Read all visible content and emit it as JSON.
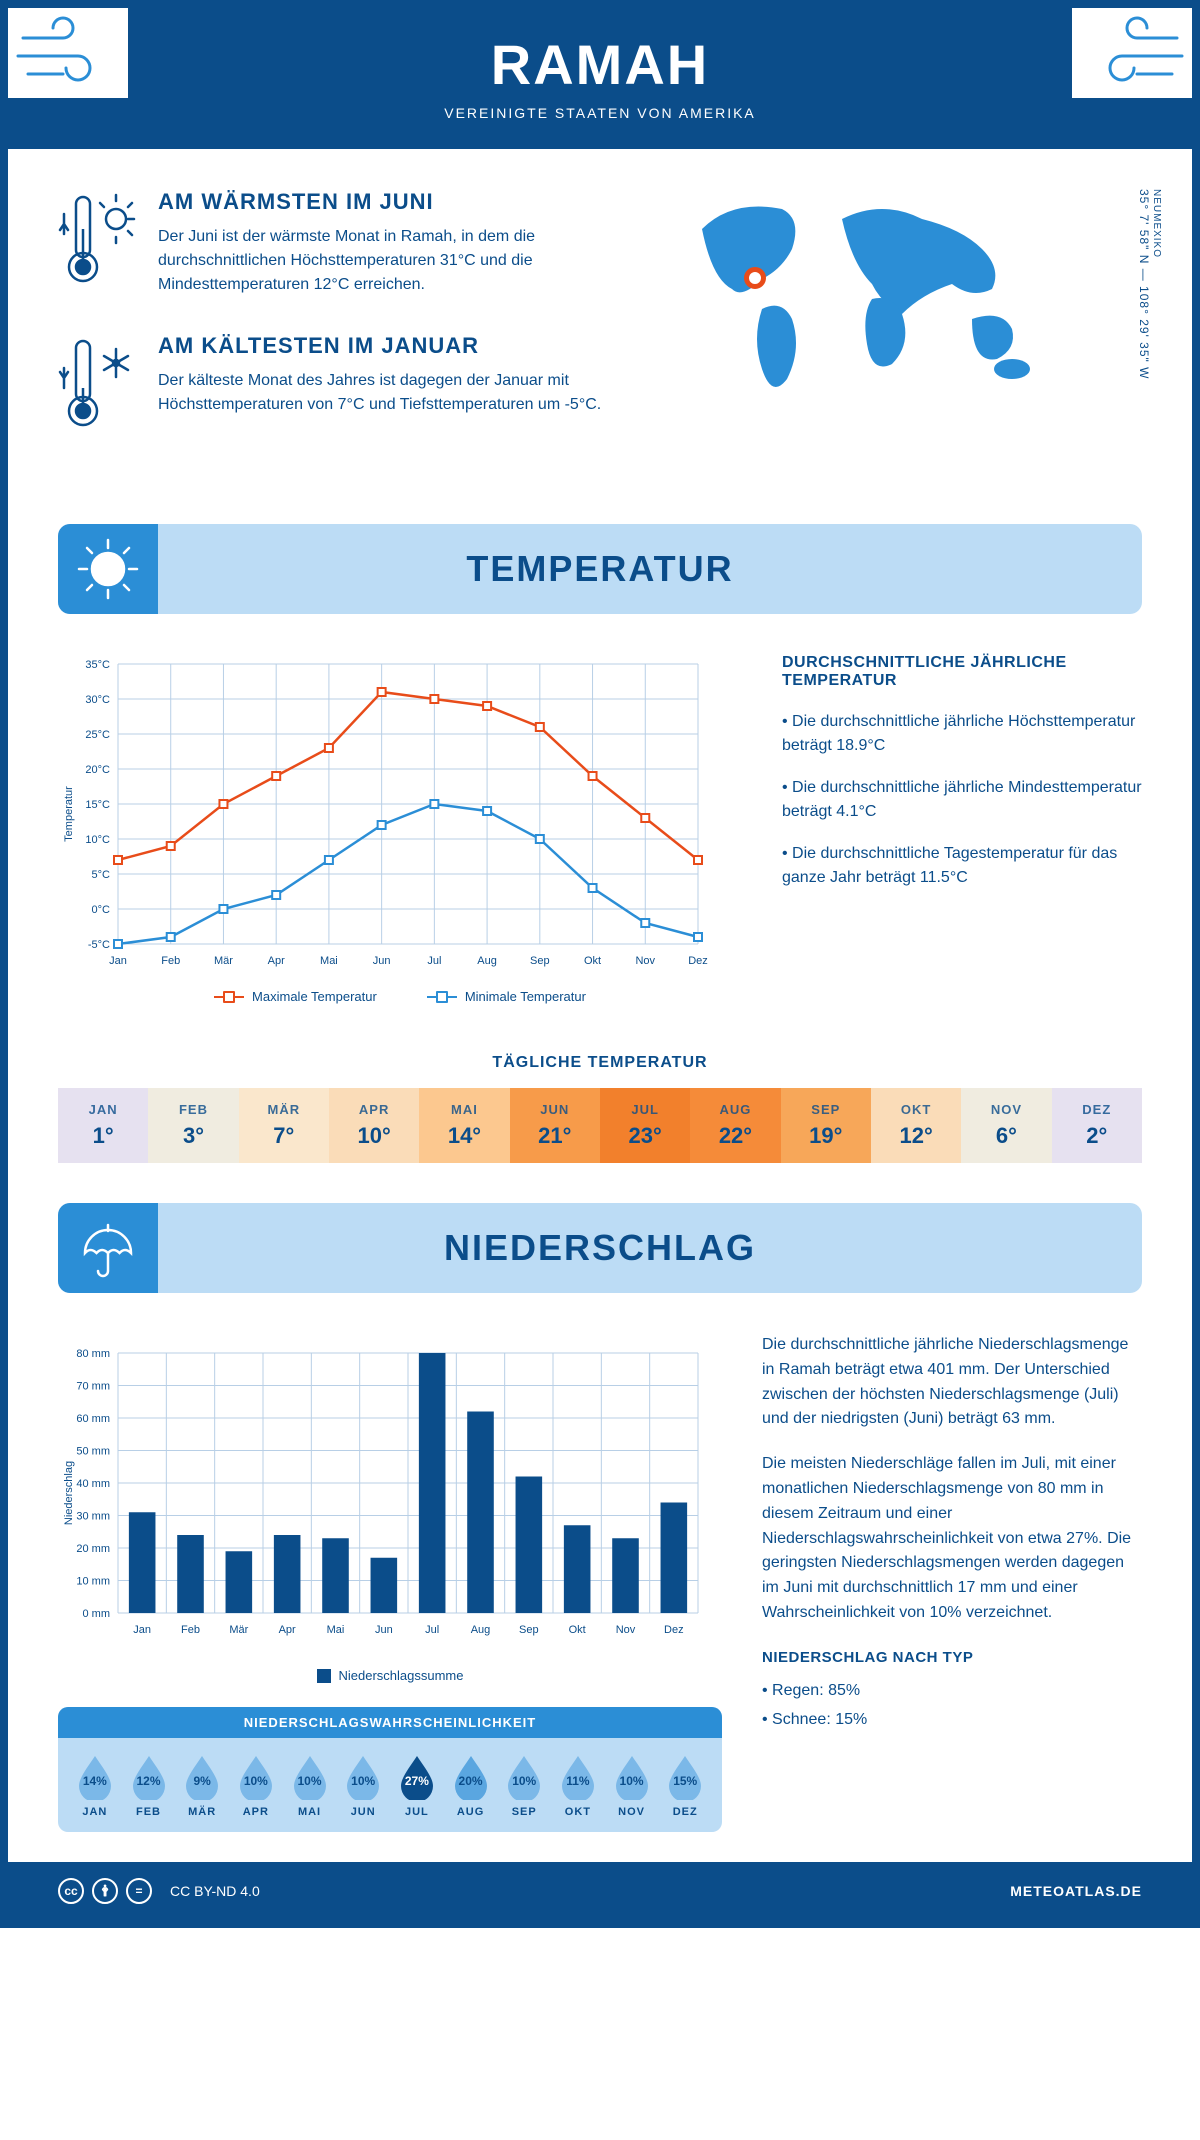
{
  "header": {
    "title": "RAMAH",
    "subtitle": "VEREINIGTE STAATEN VON AMERIKA"
  },
  "coords": {
    "region": "NEUMEXIKO",
    "text": "35° 7' 58\" N — 108° 29' 35\" W"
  },
  "intro": {
    "warm": {
      "title": "AM WÄRMSTEN IM JUNI",
      "body": "Der Juni ist der wärmste Monat in Ramah, in dem die durchschnittlichen Höchsttemperaturen 31°C und die Mindesttemperaturen 12°C erreichen."
    },
    "cold": {
      "title": "AM KÄLTESTEN IM JANUAR",
      "body": "Der kälteste Monat des Jahres ist dagegen der Januar mit Höchsttemperaturen von 7°C und Tiefsttemperaturen um -5°C."
    }
  },
  "sections": {
    "temp": "TEMPERATUR",
    "precip": "NIEDERSCHLAG"
  },
  "months": [
    "Jan",
    "Feb",
    "Mär",
    "Apr",
    "Mai",
    "Jun",
    "Jul",
    "Aug",
    "Sep",
    "Okt",
    "Nov",
    "Dez"
  ],
  "months_upper": [
    "JAN",
    "FEB",
    "MÄR",
    "APR",
    "MAI",
    "JUN",
    "JUL",
    "AUG",
    "SEP",
    "OKT",
    "NOV",
    "DEZ"
  ],
  "temp_chart": {
    "type": "line",
    "y_axis_label": "Temperatur",
    "ylim": [
      -5,
      35
    ],
    "ytick_step": 5,
    "max_series": {
      "label": "Maximale Temperatur",
      "color": "#e84c1a",
      "values": [
        7,
        9,
        15,
        19,
        23,
        31,
        30,
        29,
        26,
        19,
        13,
        7
      ]
    },
    "min_series": {
      "label": "Minimale Temperatur",
      "color": "#2b8ed6",
      "values": [
        -5,
        -4,
        0,
        2,
        7,
        12,
        15,
        14,
        10,
        3,
        -2,
        -4
      ]
    },
    "grid_color": "#b8cfe6",
    "line_width": 2.5,
    "marker": "square"
  },
  "temp_side": {
    "title": "DURCHSCHNITTLICHE JÄHRLICHE TEMPERATUR",
    "b1": "• Die durchschnittliche jährliche Höchsttemperatur beträgt 18.9°C",
    "b2": "• Die durchschnittliche jährliche Mindesttemperatur beträgt 4.1°C",
    "b3": "• Die durchschnittliche Tagestemperatur für das ganze Jahr beträgt 11.5°C"
  },
  "daily": {
    "title": "TÄGLICHE TEMPERATUR",
    "values": [
      "1°",
      "3°",
      "7°",
      "10°",
      "14°",
      "21°",
      "23°",
      "22°",
      "19°",
      "12°",
      "6°",
      "2°"
    ],
    "colors": [
      "#e6e1f0",
      "#f0ece0",
      "#fae7cc",
      "#fadcb8",
      "#fcc88f",
      "#f79b4a",
      "#f2802c",
      "#f58b39",
      "#f7a759",
      "#fadcb8",
      "#f0ece0",
      "#e6e1f0"
    ]
  },
  "precip_chart": {
    "type": "bar",
    "y_axis_label": "Niederschlag",
    "legend": "Niederschlagssumme",
    "ylim": [
      0,
      80
    ],
    "ytick_step": 10,
    "values": [
      31,
      24,
      19,
      24,
      23,
      17,
      80,
      62,
      42,
      27,
      23,
      34
    ],
    "bar_color": "#0b4d8a",
    "grid_color": "#b8cfe6",
    "bar_width": 0.55
  },
  "precip_side": {
    "p1": "Die durchschnittliche jährliche Niederschlagsmenge in Ramah beträgt etwa 401 mm. Der Unterschied zwischen der höchsten Niederschlagsmenge (Juli) und der niedrigsten (Juni) beträgt 63 mm.",
    "p2": "Die meisten Niederschläge fallen im Juli, mit einer monatlichen Niederschlagsmenge von 80 mm in diesem Zeitraum und einer Niederschlagswahrscheinlichkeit von etwa 27%. Die geringsten Niederschlagsmengen werden dagegen im Juni mit durchschnittlich 17 mm und einer Wahrscheinlichkeit von 10% verzeichnet.",
    "type_title": "NIEDERSCHLAG NACH TYP",
    "type_1": "• Regen: 85%",
    "type_2": "• Schnee: 15%"
  },
  "prob": {
    "title": "NIEDERSCHLAGSWAHRSCHEINLICHKEIT",
    "values": [
      "14%",
      "12%",
      "9%",
      "10%",
      "10%",
      "10%",
      "27%",
      "20%",
      "10%",
      "11%",
      "10%",
      "15%"
    ],
    "fills": [
      "#7bb8e8",
      "#7bb8e8",
      "#7bb8e8",
      "#7bb8e8",
      "#7bb8e8",
      "#7bb8e8",
      "#0b4d8a",
      "#5aa6e0",
      "#7bb8e8",
      "#7bb8e8",
      "#7bb8e8",
      "#7bb8e8"
    ]
  },
  "footer": {
    "license": "CC BY-ND 4.0",
    "brand": "METEOATLAS.DE"
  },
  "colors": {
    "primary": "#0b4d8a",
    "accent": "#2b8ed6",
    "light": "#bcdcf5",
    "orange": "#e84c1a"
  }
}
